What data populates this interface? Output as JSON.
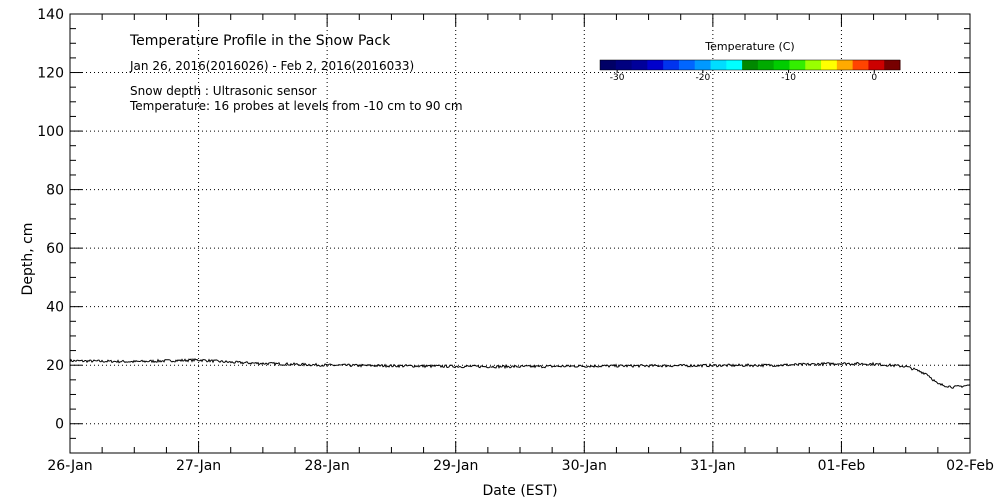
{
  "chart_data": {
    "type": "line",
    "title": "Temperature Profile in the Snow Pack",
    "subtitle": "Jan 26, 2016(2016026) - Feb  2, 2016(2016033)",
    "notes": [
      "Snow depth : Ultrasonic sensor",
      "Temperature: 16 probes at levels from -10 cm to 90 cm"
    ],
    "xlabel": "Date (EST)",
    "ylabel": "Depth, cm",
    "xlim": [
      "26-Jan",
      "02-Feb"
    ],
    "ylim": [
      -10,
      140
    ],
    "x_ticks": [
      "26-Jan",
      "27-Jan",
      "28-Jan",
      "29-Jan",
      "30-Jan",
      "31-Jan",
      "01-Feb",
      "02-Feb"
    ],
    "y_ticks": [
      0,
      20,
      40,
      60,
      80,
      100,
      120,
      140
    ],
    "grid": true,
    "colorbar": {
      "title": "Temperature (C)",
      "ticks": [
        -30,
        -20,
        -10,
        0
      ],
      "range": [
        -32,
        3
      ],
      "colors": [
        "#000066",
        "#000080",
        "#00009a",
        "#0000cc",
        "#0033ee",
        "#0066ff",
        "#0099ff",
        "#00ddff",
        "#00ffff",
        "#008800",
        "#00aa00",
        "#00cc00",
        "#33ee00",
        "#99ff00",
        "#ffff00",
        "#ffaa00",
        "#ff4400",
        "#cc0000",
        "#770000"
      ]
    },
    "series": [
      {
        "x": [
          "26-Jan 00:00",
          "26-Jan 12:00",
          "27-Jan 00:00",
          "27-Jan 06:00",
          "27-Jan 12:00",
          "28-Jan 00:00",
          "28-Jan 12:00",
          "29-Jan 00:00",
          "29-Jan 12:00",
          "30-Jan 00:00",
          "30-Jan 12:00",
          "31-Jan 00:00",
          "31-Jan 12:00",
          "01-Feb 00:00",
          "01-Feb 06:00",
          "01-Feb 12:00",
          "01-Feb 16:00",
          "01-Feb 18:00",
          "01-Feb 21:00",
          "02-Feb 00:00"
        ],
        "y": [
          21.5,
          21.2,
          21.8,
          21.0,
          20.6,
          20.0,
          19.8,
          19.6,
          19.5,
          19.7,
          19.8,
          19.9,
          20.0,
          20.6,
          20.4,
          19.6,
          17.0,
          13.5,
          12.5,
          13.2
        ]
      }
    ]
  }
}
